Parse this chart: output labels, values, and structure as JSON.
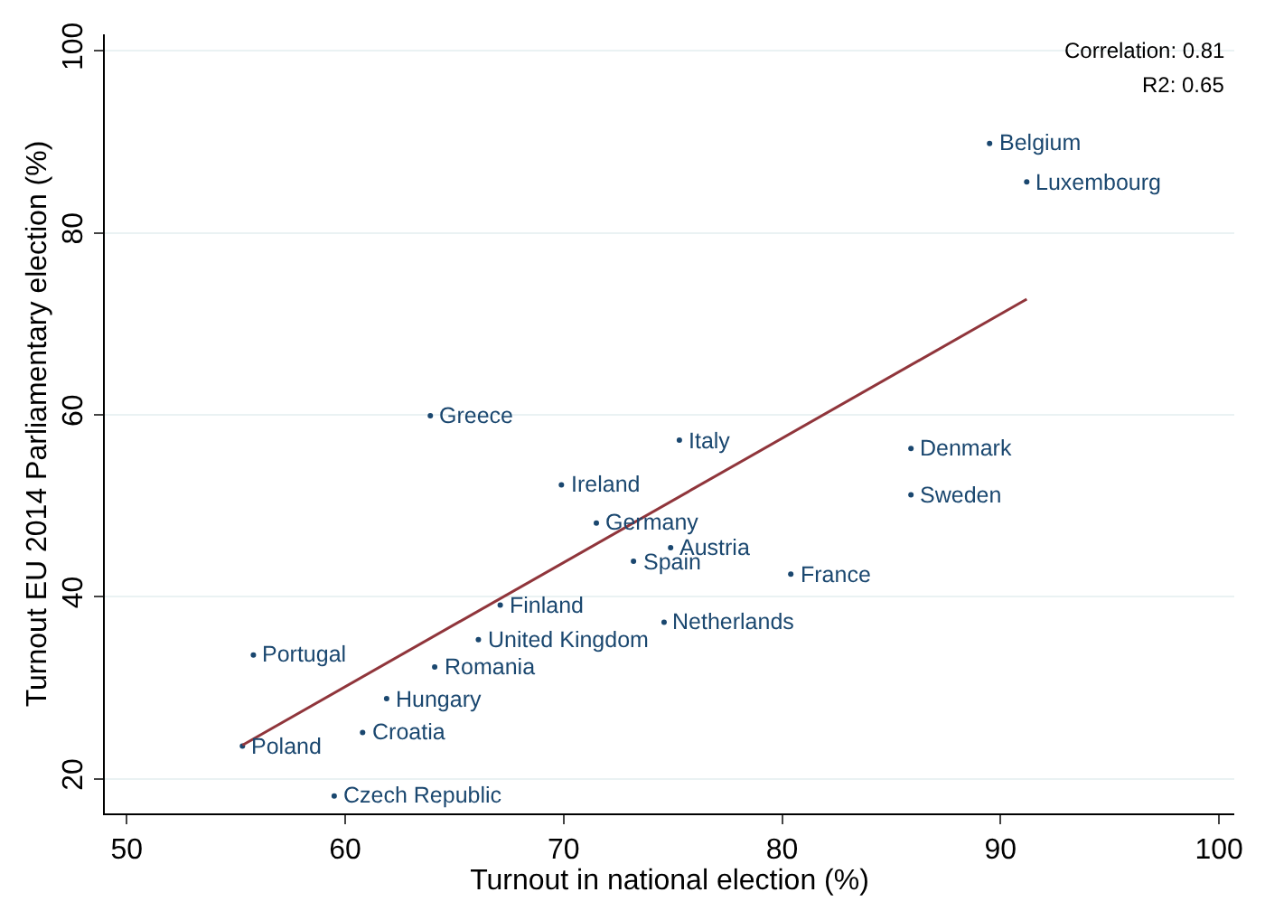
{
  "chart_data": {
    "type": "scatter",
    "xlabel": "Turnout in national election (%)",
    "ylabel": "Turnout EU 2014 Parliamentary election (%)",
    "xlim": [
      49,
      100.7
    ],
    "ylim": [
      16.2,
      101.8
    ],
    "xticks": [
      50,
      60,
      70,
      80,
      90,
      100
    ],
    "yticks": [
      20,
      40,
      60,
      80,
      100
    ],
    "grid": "y",
    "series": [
      {
        "color": "#1a476f",
        "marker": "circle",
        "x": [
          63.9,
          69.9,
          71.5,
          73.2,
          67.1,
          66.1,
          55.8,
          64.1,
          61.9,
          60.8,
          55.3,
          59.5,
          75.3,
          85.9,
          85.9,
          74.9,
          80.4,
          74.6,
          89.5,
          91.2
        ],
        "values": [
          59.9,
          52.3,
          48.1,
          43.9,
          39.1,
          35.3,
          33.6,
          32.3,
          28.8,
          25.1,
          23.6,
          18.1,
          57.2,
          56.3,
          51.2,
          45.4,
          42.5,
          37.2,
          89.8,
          85.6
        ]
      },
      {
        "type": "line",
        "color": "#90353b",
        "line_style": "solid",
        "marker": "none",
        "x": [
          55.3,
          91.2
        ],
        "values": [
          23.7,
          72.7
        ]
      }
    ],
    "annotations": [
      {
        "text": "Greece",
        "x": 63.9,
        "y": 59.9
      },
      {
        "text": "Ireland",
        "x": 69.9,
        "y": 52.3
      },
      {
        "text": "Germany",
        "x": 71.5,
        "y": 48.1
      },
      {
        "text": "Spain",
        "x": 73.2,
        "y": 43.9
      },
      {
        "text": "Finland",
        "x": 67.1,
        "y": 39.1
      },
      {
        "text": "United Kingdom",
        "x": 66.1,
        "y": 35.3
      },
      {
        "text": "Portugal",
        "x": 55.8,
        "y": 33.6
      },
      {
        "text": "Romania",
        "x": 64.1,
        "y": 32.3
      },
      {
        "text": "Hungary",
        "x": 61.9,
        "y": 28.8
      },
      {
        "text": "Croatia",
        "x": 60.8,
        "y": 25.1
      },
      {
        "text": "Poland",
        "x": 55.3,
        "y": 23.6
      },
      {
        "text": "Czech Republic",
        "x": 59.5,
        "y": 18.1
      },
      {
        "text": "Italy",
        "x": 75.3,
        "y": 57.2
      },
      {
        "text": "Denmark",
        "x": 85.9,
        "y": 56.3
      },
      {
        "text": "Sweden",
        "x": 85.9,
        "y": 51.2
      },
      {
        "text": "Austria",
        "x": 74.9,
        "y": 45.4
      },
      {
        "text": "France",
        "x": 80.4,
        "y": 42.5
      },
      {
        "text": "Netherlands",
        "x": 74.6,
        "y": 37.2
      },
      {
        "text": "Belgium",
        "x": 89.5,
        "y": 89.8
      },
      {
        "text": "Luxembourg",
        "x": 91.2,
        "y": 85.6
      },
      "Correlation: 0.81",
      "R2: 0.65"
    ]
  }
}
